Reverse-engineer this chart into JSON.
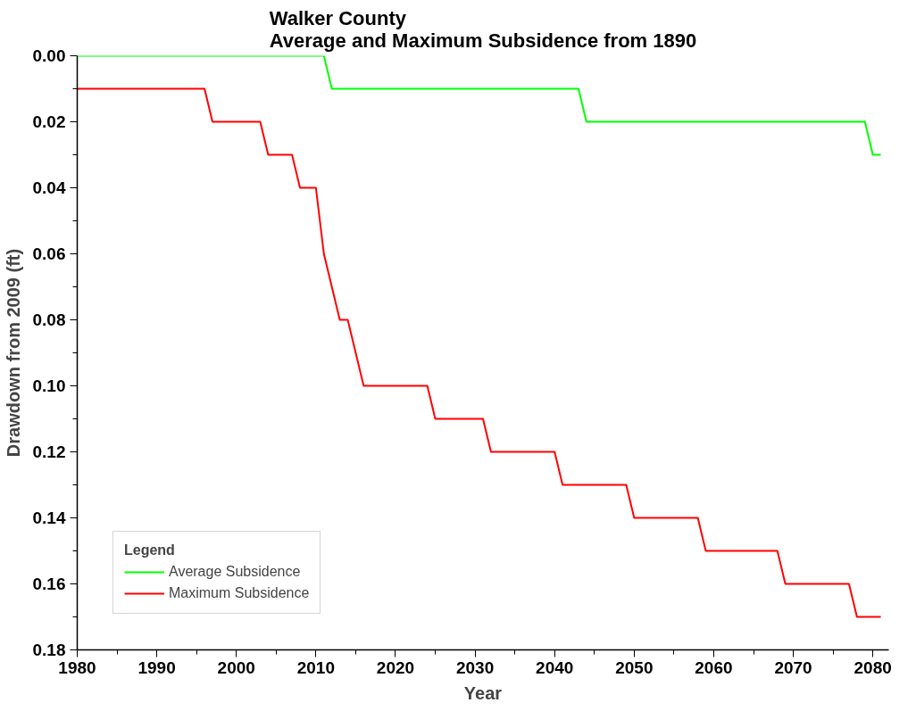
{
  "chart_data": {
    "type": "line",
    "title": "Walker County\nAverage and Maximum Subsidence from 1890",
    "xlabel": "Year",
    "ylabel": "Drawdown from 2009 (ft)",
    "legend_title": "Legend",
    "legend": "bottom left",
    "grid": false,
    "marker": "none",
    "line_style": "solid",
    "xlim": [
      1980,
      2082
    ],
    "ylim": [
      0.18,
      0
    ],
    "xticks": [
      1980,
      {
        "value": 1985,
        "label": null
      },
      1990,
      {
        "value": 1995,
        "label": null
      },
      2000,
      {
        "value": 2005,
        "label": null
      },
      2010,
      {
        "value": 2015,
        "label": null
      },
      2020,
      {
        "value": 2025,
        "label": null
      },
      2030,
      {
        "value": 2035,
        "label": null
      },
      2040,
      {
        "value": 2045,
        "label": null
      },
      2050,
      {
        "value": 2055,
        "label": null
      },
      2060,
      {
        "value": 2065,
        "label": null
      },
      2070,
      {
        "value": 2075,
        "label": null
      },
      2080
    ],
    "yticks": [
      {
        "value": 0,
        "label": "0.00"
      },
      {
        "value": 0.01,
        "label": null
      },
      {
        "value": 0.02,
        "label": "0.02"
      },
      {
        "value": 0.03,
        "label": null
      },
      {
        "value": 0.04,
        "label": "0.04"
      },
      {
        "value": 0.05,
        "label": null
      },
      {
        "value": 0.06,
        "label": "0.06"
      },
      {
        "value": 0.07,
        "label": null
      },
      {
        "value": 0.08,
        "label": "0.08"
      },
      {
        "value": 0.09,
        "label": null
      },
      {
        "value": 0.1,
        "label": "0.10"
      },
      {
        "value": 0.11,
        "label": null
      },
      {
        "value": 0.12,
        "label": "0.12"
      },
      {
        "value": 0.13,
        "label": null
      },
      {
        "value": 0.14,
        "label": "0.14"
      },
      {
        "value": 0.15,
        "label": null
      },
      {
        "value": 0.16,
        "label": "0.16"
      },
      {
        "value": 0.17,
        "label": null
      },
      {
        "value": 0.18,
        "label": "0.18"
      }
    ],
    "series": [
      {
        "name": "Average Subsidence",
        "color": "#00ff00",
        "x": [
          1980,
          2011,
          2012,
          2043,
          2044,
          2079,
          2080,
          2081
        ],
        "values": [
          0,
          0,
          0.01,
          0.01,
          0.02,
          0.02,
          0.03,
          0.03
        ]
      },
      {
        "name": "Maximum Subsidence",
        "color": "#ff0000",
        "x": [
          1980,
          1996,
          1997,
          2003,
          2004,
          2007,
          2008,
          2010,
          2011,
          2013,
          2014,
          2016,
          2024,
          2025,
          2031,
          2032,
          2040,
          2041,
          2049,
          2050,
          2058,
          2059,
          2068,
          2069,
          2077,
          2078,
          2081
        ],
        "values": [
          0.01,
          0.01,
          0.02,
          0.02,
          0.03,
          0.03,
          0.04,
          0.04,
          0.06,
          0.08,
          0.08,
          0.1,
          0.1,
          0.11,
          0.11,
          0.12,
          0.12,
          0.13,
          0.13,
          0.14,
          0.14,
          0.15,
          0.15,
          0.16,
          0.16,
          0.17,
          0.17
        ]
      }
    ]
  }
}
